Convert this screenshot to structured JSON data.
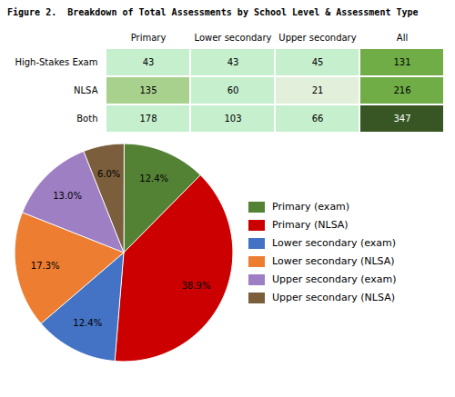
{
  "chart_data": [
    {
      "type": "table",
      "title": "Figure 2.  Breakdown of Total Assessments by School Level & Assessment Type",
      "columns": [
        "Primary",
        "Lower secondary",
        "Upper secondary",
        "All"
      ],
      "rows": [
        {
          "label": "High-Stakes Exam",
          "values": [
            43,
            43,
            45,
            131
          ],
          "colors": [
            "#c6efce",
            "#c6efce",
            "#c6efce",
            "#70ad47"
          ],
          "text_colors": [
            "#000000",
            "#000000",
            "#000000",
            "#000000"
          ]
        },
        {
          "label": "NLSA",
          "values": [
            135,
            60,
            21,
            216
          ],
          "colors": [
            "#a9d18e",
            "#c6efce",
            "#e2efda",
            "#70ad47"
          ],
          "text_colors": [
            "#000000",
            "#000000",
            "#000000",
            "#000000"
          ]
        },
        {
          "label": "Both",
          "values": [
            178,
            103,
            66,
            347
          ],
          "colors": [
            "#c6efce",
            "#c6efce",
            "#c6efce",
            "#375623"
          ],
          "text_colors": [
            "#000000",
            "#000000",
            "#000000",
            "#ffffff"
          ]
        }
      ]
    },
    {
      "type": "pie",
      "categories": [
        "Primary (exam)",
        "Primary (NLSA)",
        "Lower secondary (exam)",
        "Lower secondary (NLSA)",
        "Upper secondary (exam)",
        "Upper secondary (NLSA)"
      ],
      "values": [
        12.4,
        38.9,
        12.4,
        17.3,
        13.0,
        6.0
      ],
      "value_labels": [
        "12.4%",
        "38.9%",
        "12.4%",
        "17.3%",
        "13.0%",
        "6.0%"
      ],
      "colors": [
        "#548235",
        "#cc0000",
        "#4472c4",
        "#ed7d31",
        "#9e7fc4",
        "#7b5e3c"
      ],
      "data_labels": true,
      "legend": "right"
    }
  ]
}
